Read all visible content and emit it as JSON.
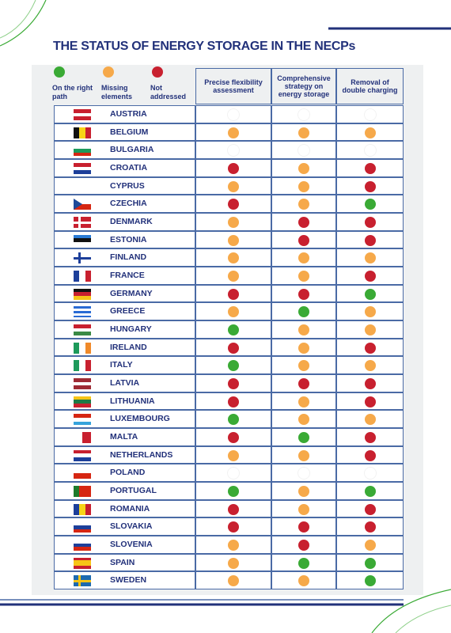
{
  "title": "THE STATUS OF ENERGY STORAGE IN THE NECPs",
  "legend": [
    {
      "label": "On the right path",
      "color": "#3aaa35"
    },
    {
      "label": "Missing elements",
      "color": "#f6a94a"
    },
    {
      "label": "Not addressed",
      "color": "#c8202f"
    }
  ],
  "columns": [
    "Precise flexibility assessment",
    "Comprehensive strategy on energy storage",
    "Removal of double charging"
  ],
  "blank_color": "#ffffff",
  "rows": [
    {
      "country": "AUSTRIA",
      "status": [
        "#ffffff",
        "#ffffff",
        "#ffffff"
      ]
    },
    {
      "country": "BELGIUM",
      "status": [
        "#f6a94a",
        "#f6a94a",
        "#f6a94a"
      ]
    },
    {
      "country": "BULGARIA",
      "status": [
        "#ffffff",
        "#ffffff",
        "#ffffff"
      ]
    },
    {
      "country": "CROATIA",
      "status": [
        "#c8202f",
        "#f6a94a",
        "#c8202f"
      ]
    },
    {
      "country": "CYPRUS",
      "status": [
        "#f6a94a",
        "#f6a94a",
        "#c8202f"
      ]
    },
    {
      "country": "CZECHIA",
      "status": [
        "#c8202f",
        "#f6a94a",
        "#3aaa35"
      ]
    },
    {
      "country": "DENMARK",
      "status": [
        "#f6a94a",
        "#c8202f",
        "#c8202f"
      ]
    },
    {
      "country": "ESTONIA",
      "status": [
        "#f6a94a",
        "#c8202f",
        "#c8202f"
      ]
    },
    {
      "country": "FINLAND",
      "status": [
        "#f6a94a",
        "#f6a94a",
        "#f6a94a"
      ]
    },
    {
      "country": "FRANCE",
      "status": [
        "#f6a94a",
        "#f6a94a",
        "#c8202f"
      ]
    },
    {
      "country": "GERMANY",
      "status": [
        "#c8202f",
        "#c8202f",
        "#3aaa35"
      ]
    },
    {
      "country": "GREECE",
      "status": [
        "#f6a94a",
        "#3aaa35",
        "#f6a94a"
      ]
    },
    {
      "country": "HUNGARY",
      "status": [
        "#3aaa35",
        "#f6a94a",
        "#f6a94a"
      ]
    },
    {
      "country": "IRELAND",
      "status": [
        "#c8202f",
        "#f6a94a",
        "#c8202f"
      ]
    },
    {
      "country": "ITALY",
      "status": [
        "#3aaa35",
        "#f6a94a",
        "#f6a94a"
      ]
    },
    {
      "country": "LATVIA",
      "status": [
        "#c8202f",
        "#c8202f",
        "#c8202f"
      ]
    },
    {
      "country": "LITHUANIA",
      "status": [
        "#c8202f",
        "#f6a94a",
        "#c8202f"
      ]
    },
    {
      "country": "LUXEMBOURG",
      "status": [
        "#3aaa35",
        "#f6a94a",
        "#f6a94a"
      ]
    },
    {
      "country": "MALTA",
      "status": [
        "#c8202f",
        "#3aaa35",
        "#c8202f"
      ]
    },
    {
      "country": "NETHERLANDS",
      "status": [
        "#f6a94a",
        "#f6a94a",
        "#c8202f"
      ]
    },
    {
      "country": "POLAND",
      "status": [
        "#ffffff",
        "#ffffff",
        "#ffffff"
      ]
    },
    {
      "country": "PORTUGAL",
      "status": [
        "#3aaa35",
        "#f6a94a",
        "#3aaa35"
      ]
    },
    {
      "country": "ROMANIA",
      "status": [
        "#c8202f",
        "#f6a94a",
        "#c8202f"
      ]
    },
    {
      "country": "SLOVAKIA",
      "status": [
        "#c8202f",
        "#c8202f",
        "#c8202f"
      ]
    },
    {
      "country": "SLOVENIA",
      "status": [
        "#f6a94a",
        "#c8202f",
        "#f6a94a"
      ]
    },
    {
      "country": "SPAIN",
      "status": [
        "#f6a94a",
        "#3aaa35",
        "#3aaa35"
      ]
    },
    {
      "country": "SWEDEN",
      "status": [
        "#f6a94a",
        "#f6a94a",
        "#3aaa35"
      ]
    }
  ]
}
